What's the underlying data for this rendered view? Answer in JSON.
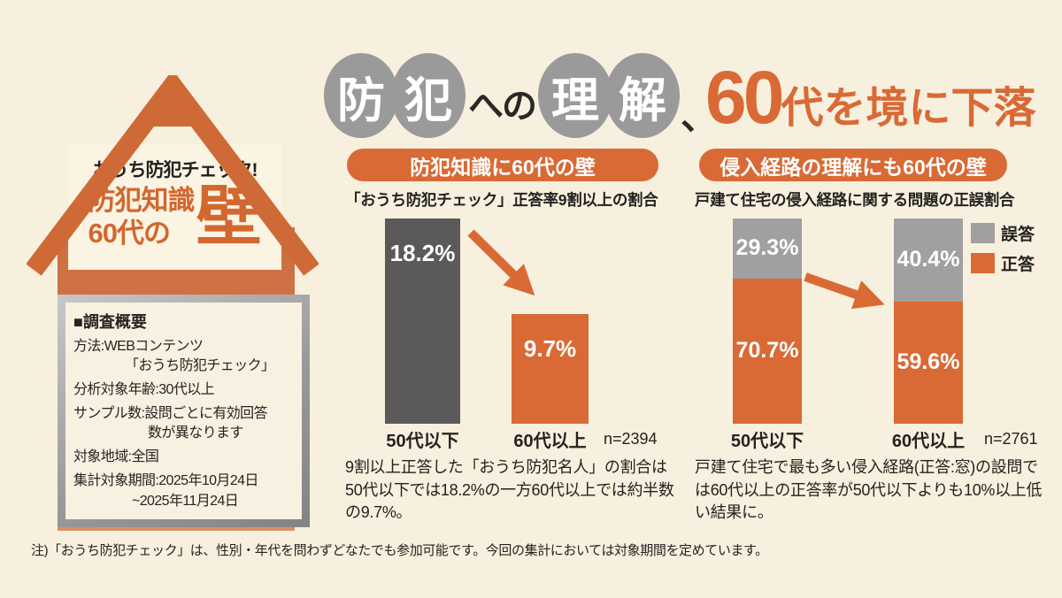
{
  "colors": {
    "background": "#f7f0de",
    "accent_orange": "#d96a35",
    "house_orange": "#cf6a36",
    "dark_gray_bar": "#5b595a",
    "light_gray": "#a1a0a0",
    "title_circle_gray": "#9b9a9a",
    "text_black": "#242220",
    "panel_cream": "#fbf4e3",
    "silver_border": "#a4a4a4"
  },
  "main_title": {
    "word1_char1": "防",
    "word1_char2": "犯",
    "connector": "への",
    "word2_char1": "理",
    "word2_char2": "解",
    "comma": "、",
    "num": "60",
    "tail": "代を境に下落"
  },
  "house": {
    "label": "おうち防犯チェック!",
    "title_line1": "防犯知識",
    "title_line2": "60代の",
    "title_big": "壁",
    "survey": {
      "heading": "■調査概要",
      "lines": [
        "方法:WEBコンテンツ",
        "「おうち防犯チェック」",
        "分析対象年齢:30代以上",
        "サンプル数:設問ごとに有効回答",
        "数が異なります",
        "対象地域:全国",
        "集計対象期間:2025年10月24日",
        "~2025年11月24日"
      ]
    }
  },
  "chart1": {
    "header": "防犯知識に60代の壁",
    "subtitle": "「おうち防犯チェック」正答率9割以上の割合",
    "bars": [
      {
        "label": "50代以下",
        "value": "18.2%"
      },
      {
        "label": "60代以上",
        "value": "9.7%"
      }
    ],
    "sample": "n=2394",
    "description": "9割以上正答した「おうち防犯名人」の割合は50代以下では18.2%の一方60代以上では約半数の9.7%。"
  },
  "chart2": {
    "header": "侵入経路の理解にも60代の壁",
    "subtitle": "戸建て住宅の侵入経路に関する問題の正誤割合",
    "legend": [
      {
        "label": "誤答",
        "color": "#a1a0a0"
      },
      {
        "label": "正答",
        "color": "#d96a35"
      }
    ],
    "bars": [
      {
        "label": "50代以下",
        "wrong": "29.3%",
        "correct": "70.7%"
      },
      {
        "label": "60代以上",
        "wrong": "40.4%",
        "correct": "59.6%"
      }
    ],
    "sample": "n=2761",
    "description": "戸建て住宅で最も多い侵入経路(正答:窓)の設問では60代以上の正答率が50代以下よりも10%以上低い結果に。"
  },
  "footer": {
    "note": "注)「おうち防犯チェック」は、性別・年代を問わずどなたでも参加可能です。今回の集計においては対象期間を定めています。"
  },
  "chart_data": [
    {
      "type": "bar",
      "title": "「おうち防犯チェック」正答率9割以上の割合",
      "categories": [
        "50代以下",
        "60代以上"
      ],
      "values": [
        18.2,
        9.7
      ],
      "unit": "%",
      "sample_size": 2394,
      "colors": [
        "#5b595a",
        "#d96a35"
      ],
      "ylim": [
        0,
        18.2
      ],
      "grid": false
    },
    {
      "type": "bar",
      "stacked": true,
      "title": "戸建て住宅の侵入経路に関する問題の正誤割合",
      "categories": [
        "50代以下",
        "60代以上"
      ],
      "series": [
        {
          "name": "正答",
          "values": [
            70.7,
            59.6
          ],
          "color": "#d96a35"
        },
        {
          "name": "誤答",
          "values": [
            29.3,
            40.4
          ],
          "color": "#a1a0a0"
        }
      ],
      "unit": "%",
      "sample_size": 2761,
      "ylim": [
        0,
        100
      ],
      "legend_position": "top-right",
      "grid": false
    }
  ]
}
